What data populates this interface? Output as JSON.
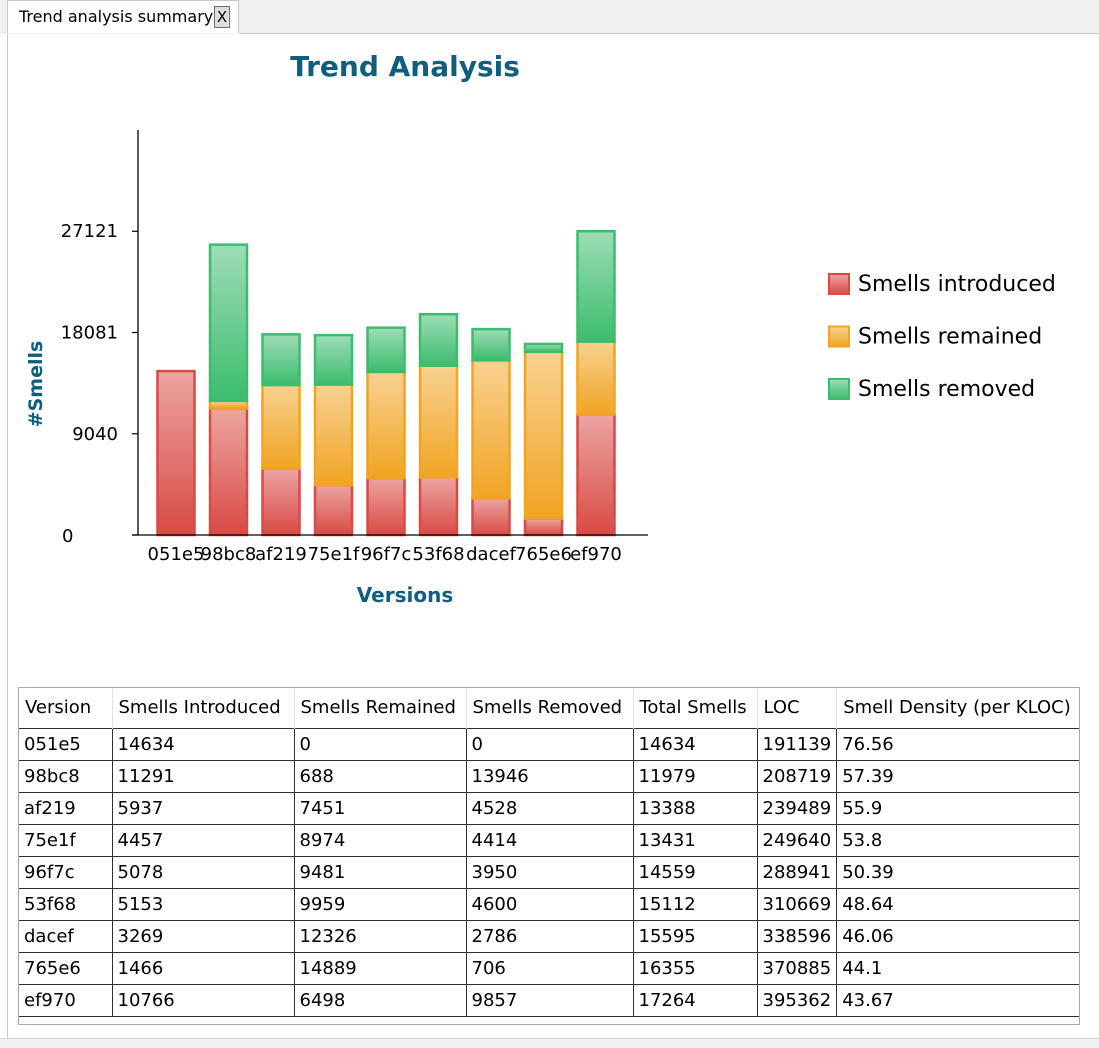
{
  "tab": {
    "title": "Trend analysis summary",
    "close_label": "X"
  },
  "chart_data": {
    "type": "bar",
    "stacked": true,
    "title": "Trend Analysis",
    "xlabel": "Versions",
    "ylabel": "#Smells",
    "categories": [
      "051e5",
      "98bc8",
      "af219",
      "75e1f",
      "96f7c",
      "53f68",
      "dacef",
      "765e6",
      "ef970"
    ],
    "series": [
      {
        "name": "Smells introduced",
        "color": "#d94a45",
        "values": [
          14634,
          11291,
          5937,
          4457,
          5078,
          5153,
          3269,
          1466,
          10766
        ]
      },
      {
        "name": "Smells remained",
        "color": "#f1a423",
        "values": [
          0,
          688,
          7451,
          8974,
          9481,
          9959,
          12326,
          14889,
          6498
        ]
      },
      {
        "name": "Smells removed",
        "color": "#3cbc6e",
        "values": [
          0,
          13946,
          4528,
          4414,
          3950,
          4600,
          2786,
          706,
          9857
        ]
      }
    ],
    "yticks": [
      0,
      9040,
      18081,
      27121
    ],
    "ylim": [
      0,
      36161
    ],
    "grid": false,
    "legend_position": "right"
  },
  "table": {
    "columns": [
      "Version",
      "Smells Introduced",
      "Smells Remained",
      "Smells Removed",
      "Total Smells",
      "LOC",
      "Smell Density (per KLOC)"
    ],
    "rows": [
      [
        "051e5",
        "14634",
        "0",
        "0",
        "14634",
        "191139",
        "76.56"
      ],
      [
        "98bc8",
        "11291",
        "688",
        "13946",
        "11979",
        "208719",
        "57.39"
      ],
      [
        "af219",
        "5937",
        "7451",
        "4528",
        "13388",
        "239489",
        "55.9"
      ],
      [
        "75e1f",
        "4457",
        "8974",
        "4414",
        "13431",
        "249640",
        "53.8"
      ],
      [
        "96f7c",
        "5078",
        "9481",
        "3950",
        "14559",
        "288941",
        "50.39"
      ],
      [
        "53f68",
        "5153",
        "9959",
        "4600",
        "15112",
        "310669",
        "48.64"
      ],
      [
        "dacef",
        "3269",
        "12326",
        "2786",
        "15595",
        "338596",
        "46.06"
      ],
      [
        "765e6",
        "1466",
        "14889",
        "706",
        "16355",
        "370885",
        "44.1"
      ],
      [
        "ef970",
        "10766",
        "6498",
        "9857",
        "17264",
        "395362",
        "43.67"
      ]
    ]
  }
}
